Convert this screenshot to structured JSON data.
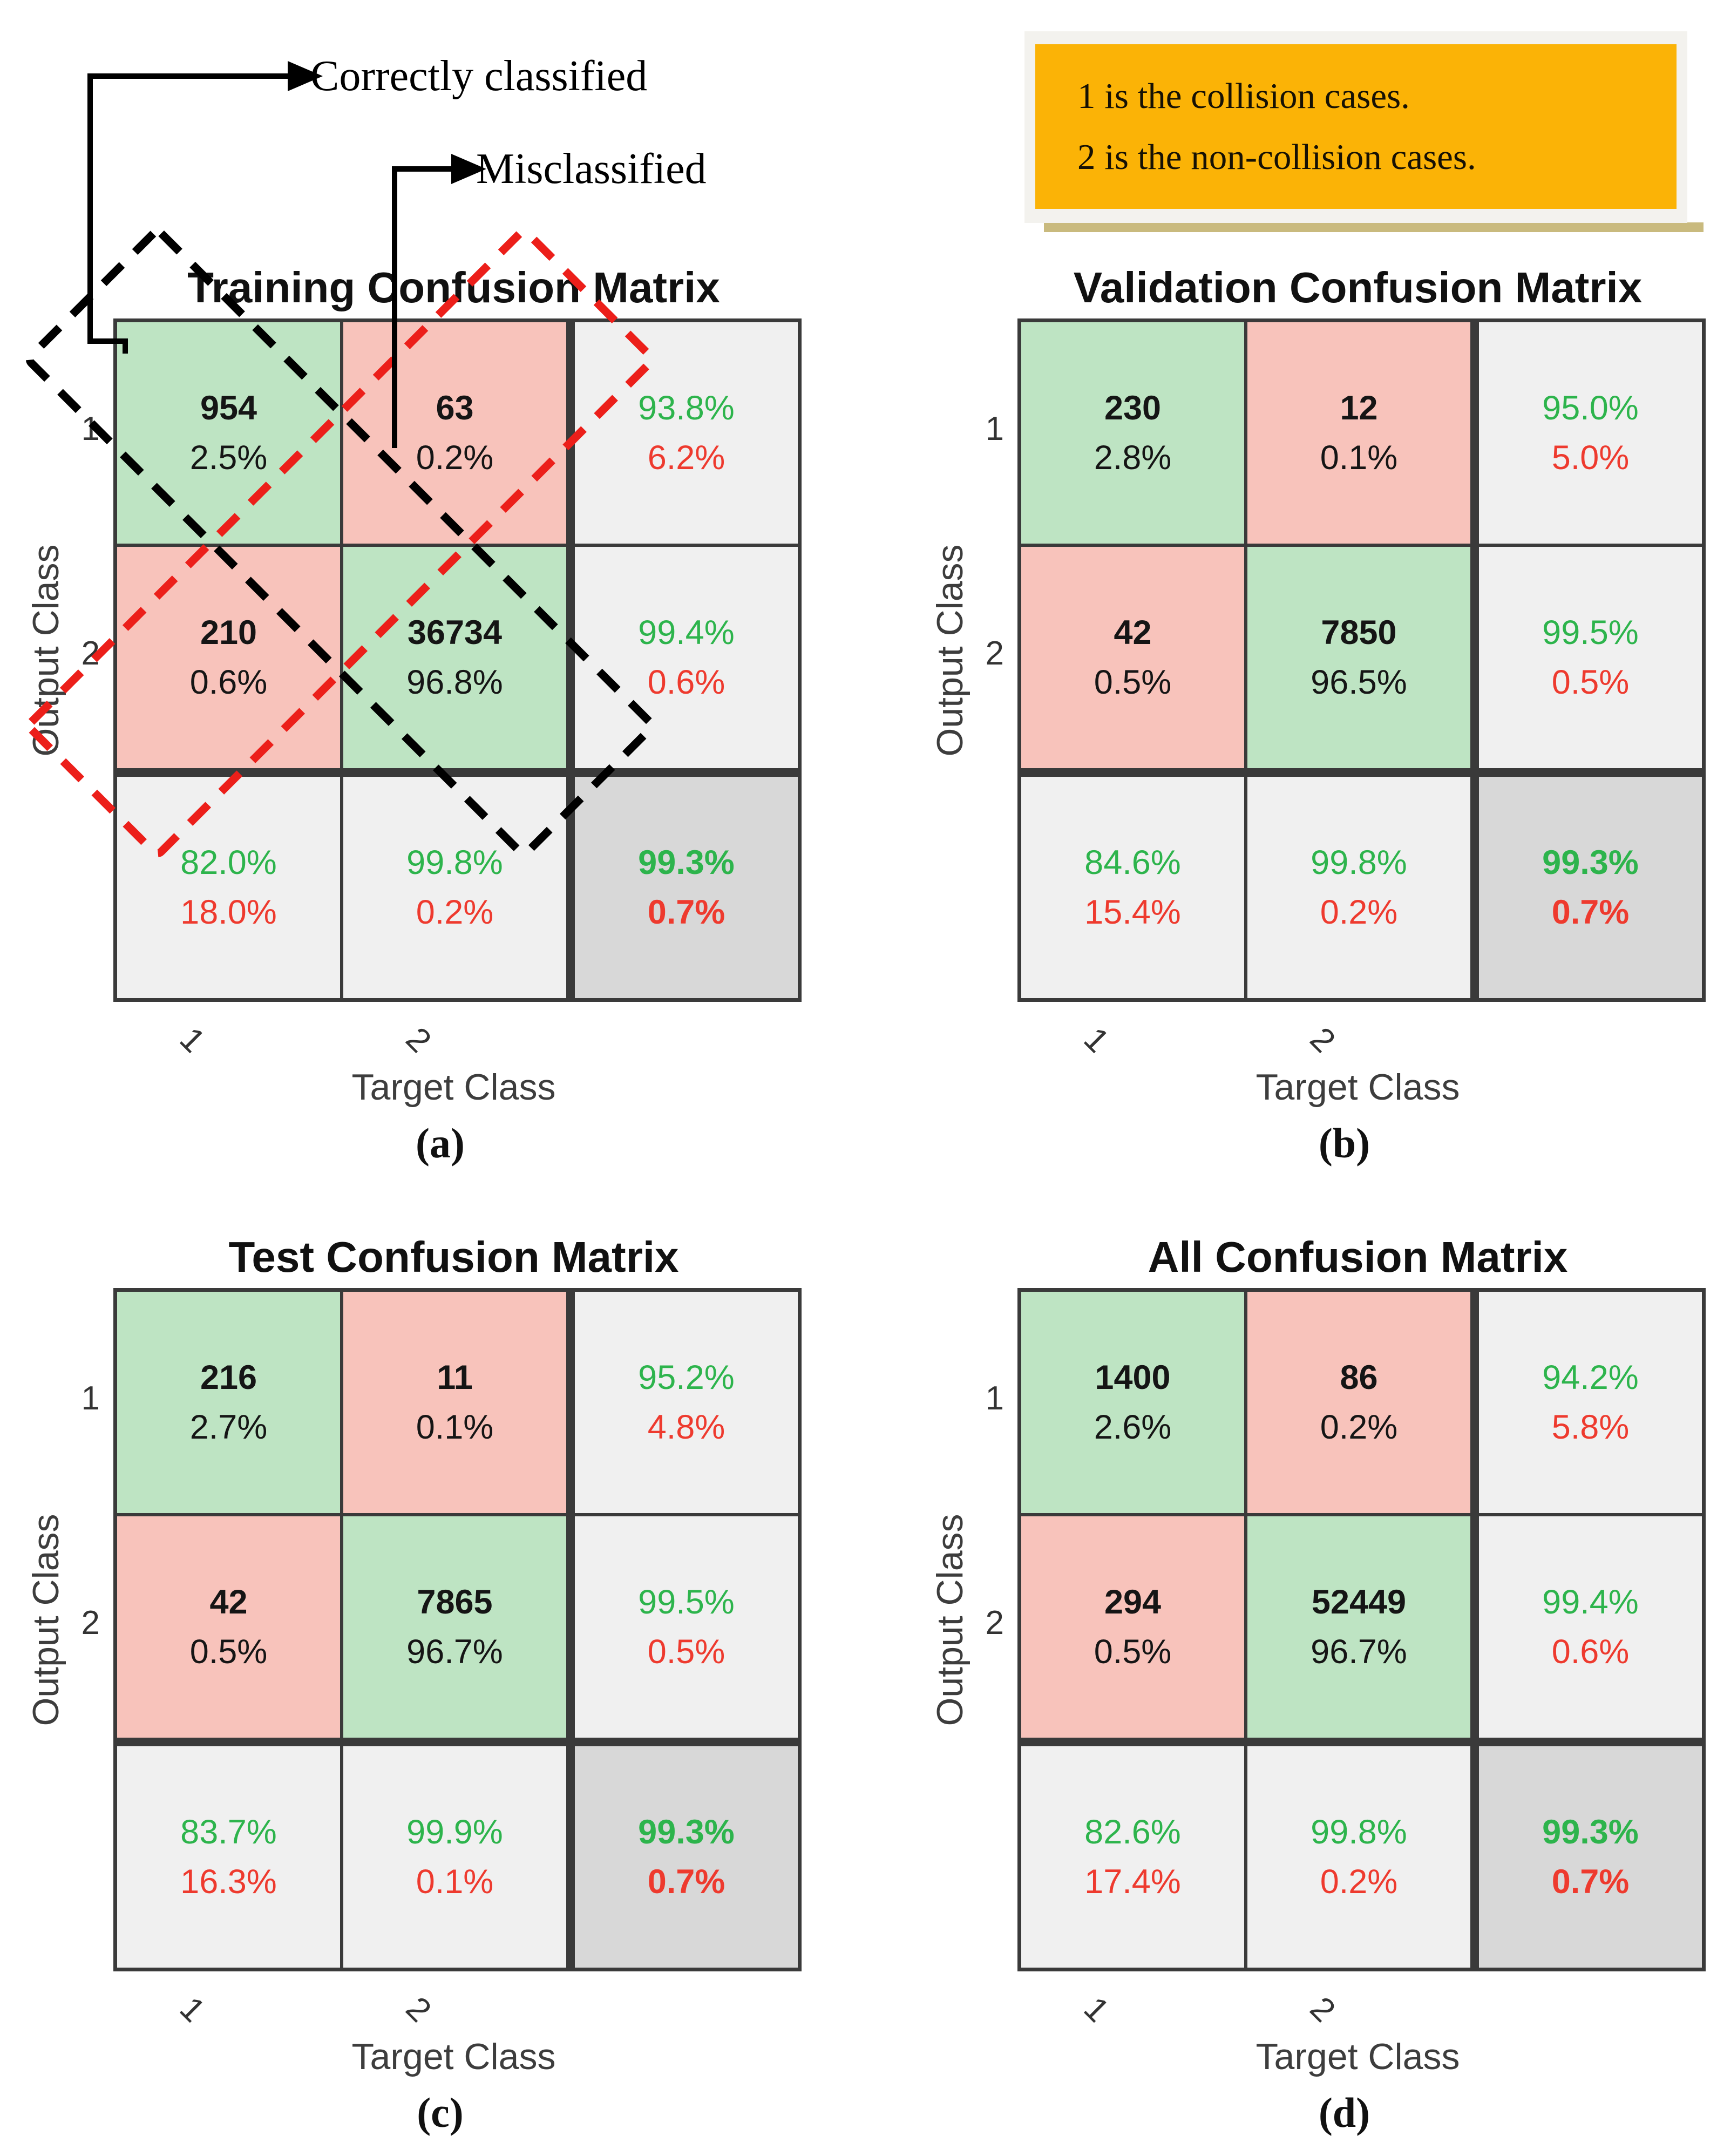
{
  "figure": {
    "annotations": {
      "correct": "Correctly classified",
      "mis": "Misclassified"
    },
    "legend": {
      "line1": "1 is the collision cases.",
      "line2": "2 is the non-collision cases."
    },
    "axes": {
      "x": "Target Class",
      "y": "Output Class"
    },
    "tick_labels": [
      "1",
      "2"
    ]
  },
  "colors": {
    "cell_green": "#bee4c3",
    "cell_red": "#f8c3bb",
    "cell_gray": "#f0f0f0",
    "cell_dark_gray": "#d8d8d8",
    "grid": "#3a3a3a",
    "text_green": "#2db44c",
    "text_red": "#ee3a2e",
    "legend_bg": "#fbb306",
    "legend_shadow": "#c9ba7e",
    "dash_black": "#000000",
    "dash_red": "#ec1f1a"
  },
  "panels": [
    {
      "id": "a",
      "title": "Training Confusion Matrix",
      "caption": "(a)",
      "overlay": true,
      "cells": [
        {
          "l1": "954",
          "l2": "2.5%",
          "t": "green"
        },
        {
          "l1": "63",
          "l2": "0.2%",
          "t": "red"
        },
        {
          "l1": "93.8%",
          "l2": "6.2%",
          "t": "sum"
        },
        {
          "l1": "210",
          "l2": "0.6%",
          "t": "red"
        },
        {
          "l1": "36734",
          "l2": "96.8%",
          "t": "green"
        },
        {
          "l1": "99.4%",
          "l2": "0.6%",
          "t": "sum"
        },
        {
          "l1": "82.0%",
          "l2": "18.0%",
          "t": "sum"
        },
        {
          "l1": "99.8%",
          "l2": "0.2%",
          "t": "sum"
        },
        {
          "l1": "99.3%",
          "l2": "0.7%",
          "t": "total"
        }
      ]
    },
    {
      "id": "b",
      "title": "Validation Confusion Matrix",
      "caption": "(b)",
      "overlay": false,
      "cells": [
        {
          "l1": "230",
          "l2": "2.8%",
          "t": "green"
        },
        {
          "l1": "12",
          "l2": "0.1%",
          "t": "red"
        },
        {
          "l1": "95.0%",
          "l2": "5.0%",
          "t": "sum"
        },
        {
          "l1": "42",
          "l2": "0.5%",
          "t": "red"
        },
        {
          "l1": "7850",
          "l2": "96.5%",
          "t": "green"
        },
        {
          "l1": "99.5%",
          "l2": "0.5%",
          "t": "sum"
        },
        {
          "l1": "84.6%",
          "l2": "15.4%",
          "t": "sum"
        },
        {
          "l1": "99.8%",
          "l2": "0.2%",
          "t": "sum"
        },
        {
          "l1": "99.3%",
          "l2": "0.7%",
          "t": "total"
        }
      ]
    },
    {
      "id": "c",
      "title": "Test Confusion Matrix",
      "caption": "(c)",
      "overlay": false,
      "cells": [
        {
          "l1": "216",
          "l2": "2.7%",
          "t": "green"
        },
        {
          "l1": "11",
          "l2": "0.1%",
          "t": "red"
        },
        {
          "l1": "95.2%",
          "l2": "4.8%",
          "t": "sum"
        },
        {
          "l1": "42",
          "l2": "0.5%",
          "t": "red"
        },
        {
          "l1": "7865",
          "l2": "96.7%",
          "t": "green"
        },
        {
          "l1": "99.5%",
          "l2": "0.5%",
          "t": "sum"
        },
        {
          "l1": "83.7%",
          "l2": "16.3%",
          "t": "sum"
        },
        {
          "l1": "99.9%",
          "l2": "0.1%",
          "t": "sum"
        },
        {
          "l1": "99.3%",
          "l2": "0.7%",
          "t": "total"
        }
      ]
    },
    {
      "id": "d",
      "title": "All Confusion Matrix",
      "caption": "(d)",
      "overlay": false,
      "cells": [
        {
          "l1": "1400",
          "l2": "2.6%",
          "t": "green"
        },
        {
          "l1": "86",
          "l2": "0.2%",
          "t": "red"
        },
        {
          "l1": "94.2%",
          "l2": "5.8%",
          "t": "sum"
        },
        {
          "l1": "294",
          "l2": "0.5%",
          "t": "red"
        },
        {
          "l1": "52449",
          "l2": "96.7%",
          "t": "green"
        },
        {
          "l1": "99.4%",
          "l2": "0.6%",
          "t": "sum"
        },
        {
          "l1": "82.6%",
          "l2": "17.4%",
          "t": "sum"
        },
        {
          "l1": "99.8%",
          "l2": "0.2%",
          "t": "sum"
        },
        {
          "l1": "99.3%",
          "l2": "0.7%",
          "t": "total"
        }
      ]
    }
  ],
  "chart_data": [
    {
      "type": "heatmap",
      "title": "Training Confusion Matrix",
      "xlabel": "Target Class",
      "ylabel": "Output Class",
      "target_classes": [
        "1",
        "2"
      ],
      "output_classes": [
        "1",
        "2"
      ],
      "counts": [
        [
          954,
          63
        ],
        [
          210,
          36734
        ]
      ],
      "count_pcts": [
        [
          "2.5%",
          "0.2%"
        ],
        [
          "0.6%",
          "96.8%"
        ]
      ],
      "row_summary": [
        [
          "93.8%",
          "6.2%"
        ],
        [
          "99.4%",
          "0.6%"
        ]
      ],
      "col_summary": [
        [
          "82.0%",
          "18.0%"
        ],
        [
          "99.8%",
          "0.2%"
        ]
      ],
      "overall": [
        "99.3%",
        "0.7%"
      ]
    },
    {
      "type": "heatmap",
      "title": "Validation Confusion Matrix",
      "xlabel": "Target Class",
      "ylabel": "Output Class",
      "target_classes": [
        "1",
        "2"
      ],
      "output_classes": [
        "1",
        "2"
      ],
      "counts": [
        [
          230,
          12
        ],
        [
          42,
          7850
        ]
      ],
      "count_pcts": [
        [
          "2.8%",
          "0.1%"
        ],
        [
          "0.5%",
          "96.5%"
        ]
      ],
      "row_summary": [
        [
          "95.0%",
          "5.0%"
        ],
        [
          "99.5%",
          "0.5%"
        ]
      ],
      "col_summary": [
        [
          "84.6%",
          "15.4%"
        ],
        [
          "99.8%",
          "0.2%"
        ]
      ],
      "overall": [
        "99.3%",
        "0.7%"
      ]
    },
    {
      "type": "heatmap",
      "title": "Test Confusion Matrix",
      "xlabel": "Target Class",
      "ylabel": "Output Class",
      "target_classes": [
        "1",
        "2"
      ],
      "output_classes": [
        "1",
        "2"
      ],
      "counts": [
        [
          216,
          11
        ],
        [
          42,
          7865
        ]
      ],
      "count_pcts": [
        [
          "2.7%",
          "0.1%"
        ],
        [
          "0.5%",
          "96.7%"
        ]
      ],
      "row_summary": [
        [
          "95.2%",
          "4.8%"
        ],
        [
          "99.5%",
          "0.5%"
        ]
      ],
      "col_summary": [
        [
          "83.7%",
          "16.3%"
        ],
        [
          "99.9%",
          "0.1%"
        ]
      ],
      "overall": [
        "99.3%",
        "0.7%"
      ]
    },
    {
      "type": "heatmap",
      "title": "All Confusion Matrix",
      "xlabel": "Target Class",
      "ylabel": "Output Class",
      "target_classes": [
        "1",
        "2"
      ],
      "output_classes": [
        "1",
        "2"
      ],
      "counts": [
        [
          1400,
          86
        ],
        [
          294,
          52449
        ]
      ],
      "count_pcts": [
        [
          "2.6%",
          "0.2%"
        ],
        [
          "0.5%",
          "96.7%"
        ]
      ],
      "row_summary": [
        [
          "94.2%",
          "5.8%"
        ],
        [
          "99.4%",
          "0.6%"
        ]
      ],
      "col_summary": [
        [
          "82.6%",
          "17.4%"
        ],
        [
          "99.8%",
          "0.2%"
        ]
      ],
      "overall": [
        "99.3%",
        "0.7%"
      ]
    }
  ]
}
